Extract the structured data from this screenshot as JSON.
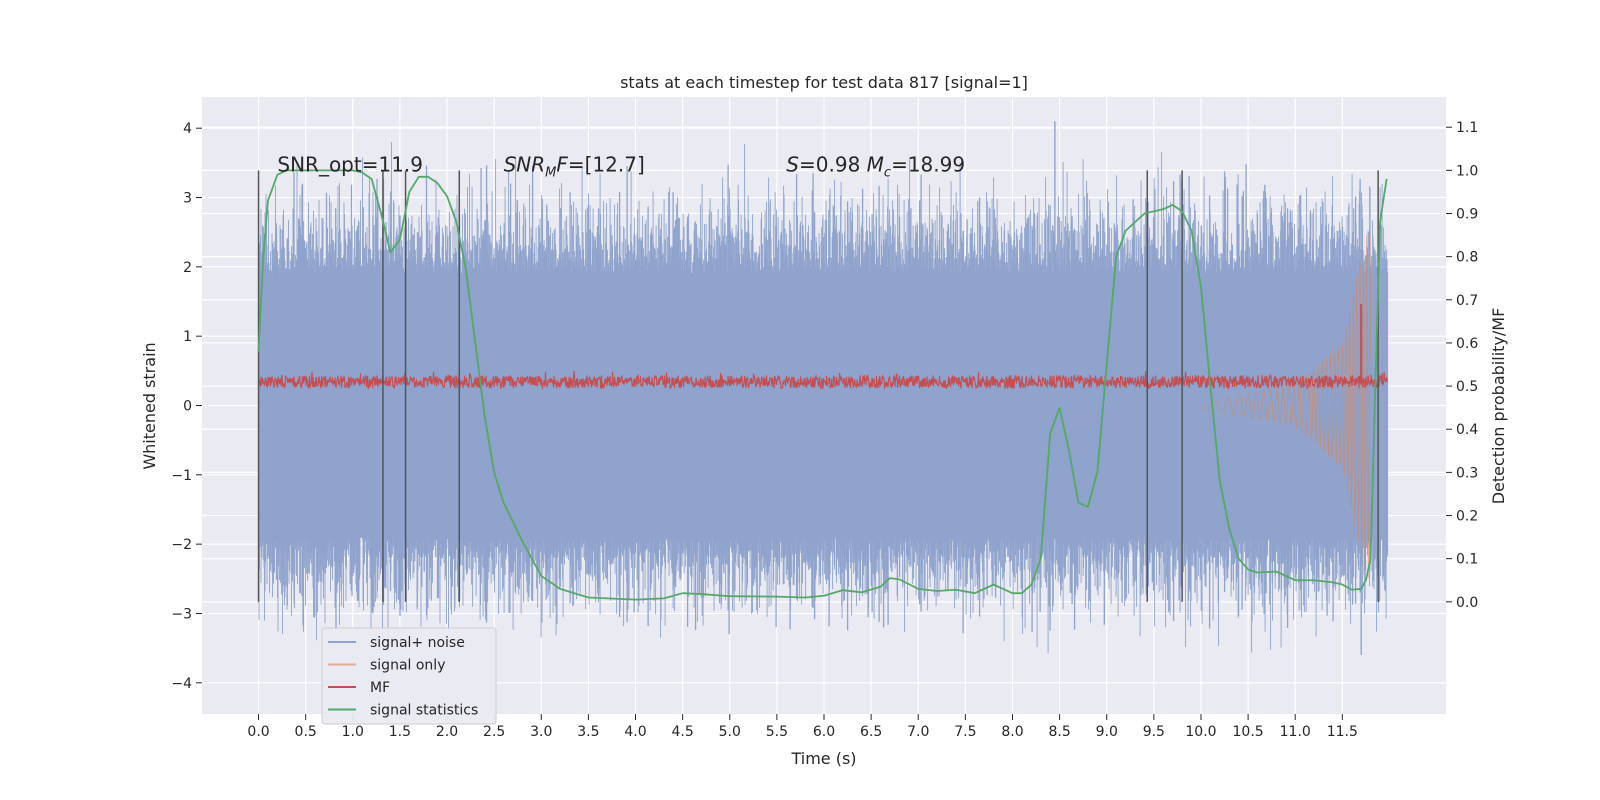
{
  "chart_data": {
    "type": "line",
    "title": "stats at each timestep for test data 817 [signal=1]",
    "xlabel": "Time (s)",
    "ylabel": "Whitened strain",
    "y2label": "Detection probability/MF",
    "xlim": [
      -0.6,
      12.6
    ],
    "ylim": [
      -4.45,
      4.45
    ],
    "y2lim": [
      -0.26,
      1.17
    ],
    "x_ticks": [
      0.0,
      0.5,
      1.0,
      1.5,
      2.0,
      2.5,
      3.0,
      3.5,
      4.0,
      4.5,
      5.0,
      5.5,
      6.0,
      6.5,
      7.0,
      7.5,
      8.0,
      8.5,
      9.0,
      9.5,
      10.0,
      10.5,
      11.0,
      11.5
    ],
    "x_tick_labels": [
      "0.0",
      "0.5",
      "1.0",
      "1.5",
      "2.0",
      "2.5",
      "3.0",
      "3.5",
      "4.0",
      "4.5",
      "5.0",
      "5.5",
      "6.0",
      "6.5",
      "7.0",
      "7.5",
      "8.0",
      "8.5",
      "9.0",
      "9.5",
      "10.0",
      "10.5",
      "11.0",
      "11.5"
    ],
    "y_ticks": [
      4,
      3,
      2,
      1,
      0,
      -1,
      -2,
      -3,
      -4
    ],
    "y_tick_labels": [
      "4",
      "3",
      "2",
      "1",
      "0",
      "−1",
      "−2",
      "−3",
      "−4"
    ],
    "y2_ticks": [
      1.1,
      1.0,
      0.9,
      0.8,
      0.7,
      0.6,
      0.5,
      0.4,
      0.3,
      0.2,
      0.1,
      0.0
    ],
    "y2_tick_labels": [
      "1.1",
      "1.0",
      "0.9",
      "0.8",
      "0.7",
      "0.6",
      "0.5",
      "0.4",
      "0.3",
      "0.2",
      "0.1",
      "0.0"
    ],
    "grid": true,
    "legend_position": "lower-left",
    "colors": {
      "signal_noise": "#8fa3cc",
      "signal_only": "#dd8452",
      "mf": "#c44e52",
      "statistics": "#55a868",
      "vlines": "#555555",
      "plot_bg": "#eaeaf2"
    },
    "annotations": [
      {
        "text": "SNR_opt=11.9",
        "x": 0.2,
        "y2": 1.0
      },
      {
        "text": "SNR_MF=[12.7]",
        "x": 2.6,
        "y2": 1.0
      },
      {
        "text": "S=0.98   M_c=18.99",
        "x": 5.6,
        "y2": 1.0
      }
    ],
    "vertical_lines": {
      "x": [
        0.0,
        1.32,
        1.56,
        2.13,
        9.43,
        9.8,
        11.88
      ],
      "y2_range": [
        0.0,
        1.0
      ]
    },
    "series": [
      {
        "name": "signal+ noise",
        "role": "noise",
        "x_range": [
          0.0,
          11.98
        ],
        "envelope_upper": 2.0,
        "envelope_lower": -2.0,
        "peak_max": 4.1,
        "peak_min": -3.6
      },
      {
        "name": "signal only",
        "role": "chirp",
        "x_range": [
          10.0,
          11.8
        ],
        "amp_at": [
          [
            10.0,
            0.05
          ],
          [
            11.0,
            0.3
          ],
          [
            11.5,
            0.9
          ],
          [
            11.75,
            2.5
          ]
        ]
      },
      {
        "name": "MF",
        "role": "mf",
        "y2_base": 0.51,
        "y2_spike": {
          "x": 11.7,
          "y2": 0.69
        }
      },
      {
        "name": "signal statistics",
        "role": "stat",
        "x": [
          0.0,
          0.05,
          0.1,
          0.2,
          0.3,
          0.5,
          1.0,
          1.1,
          1.2,
          1.3,
          1.4,
          1.5,
          1.6,
          1.7,
          1.8,
          1.9,
          2.0,
          2.1,
          2.2,
          2.3,
          2.4,
          2.5,
          2.6,
          2.8,
          3.0,
          3.2,
          3.5,
          4.0,
          4.3,
          4.5,
          4.7,
          5.0,
          5.5,
          5.8,
          6.0,
          6.2,
          6.4,
          6.6,
          6.7,
          6.8,
          7.0,
          7.2,
          7.4,
          7.6,
          7.7,
          7.8,
          8.0,
          8.1,
          8.2,
          8.3,
          8.4,
          8.5,
          8.6,
          8.7,
          8.8,
          8.9,
          9.0,
          9.1,
          9.2,
          9.4,
          9.6,
          9.7,
          9.8,
          9.9,
          10.0,
          10.1,
          10.2,
          10.3,
          10.4,
          10.5,
          10.6,
          10.8,
          11.0,
          11.2,
          11.4,
          11.5,
          11.6,
          11.7,
          11.75,
          11.8,
          11.85,
          11.9,
          11.97
        ],
        "y2": [
          0.58,
          0.8,
          0.93,
          0.99,
          1.0,
          1.0,
          1.0,
          0.995,
          0.98,
          0.9,
          0.81,
          0.84,
          0.95,
          0.985,
          0.985,
          0.97,
          0.94,
          0.88,
          0.77,
          0.6,
          0.43,
          0.3,
          0.23,
          0.14,
          0.06,
          0.03,
          0.01,
          0.005,
          0.008,
          0.02,
          0.018,
          0.013,
          0.012,
          0.01,
          0.014,
          0.027,
          0.022,
          0.035,
          0.055,
          0.052,
          0.03,
          0.025,
          0.028,
          0.02,
          0.03,
          0.04,
          0.02,
          0.02,
          0.04,
          0.1,
          0.39,
          0.45,
          0.35,
          0.23,
          0.22,
          0.3,
          0.55,
          0.8,
          0.86,
          0.9,
          0.91,
          0.92,
          0.905,
          0.86,
          0.73,
          0.5,
          0.28,
          0.17,
          0.1,
          0.075,
          0.068,
          0.07,
          0.05,
          0.05,
          0.045,
          0.04,
          0.028,
          0.03,
          0.05,
          0.1,
          0.5,
          0.88,
          0.98
        ]
      }
    ]
  }
}
